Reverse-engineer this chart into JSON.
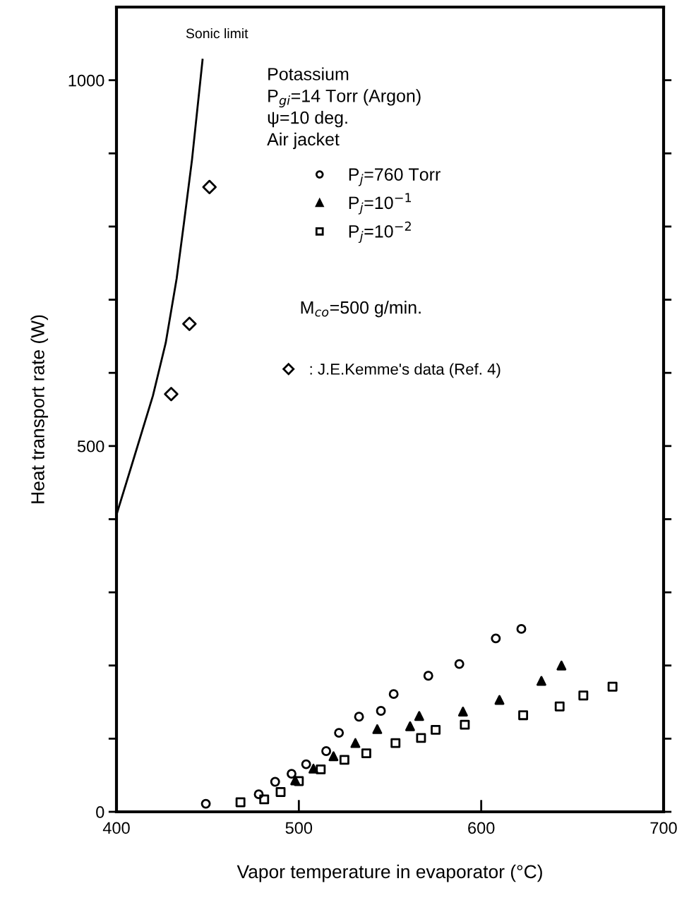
{
  "chart_data": {
    "type": "scatter",
    "xlabel": "Vapor temperature in evaporator (°C)",
    "ylabel": "Heat transport rate (W)",
    "xlim": [
      400,
      700
    ],
    "xticks": [
      400,
      500,
      600,
      700
    ],
    "ylim": [
      0,
      1100
    ],
    "yticks": [
      0,
      {
        "value": 100,
        "label": null
      },
      {
        "value": 200,
        "label": null
      },
      {
        "value": 300,
        "label": null
      },
      {
        "value": 400,
        "label": null
      },
      500,
      {
        "value": 600,
        "label": null
      },
      {
        "value": 700,
        "label": null
      },
      {
        "value": 800,
        "label": null
      },
      {
        "value": 900,
        "label": null
      },
      1000
    ],
    "grid": false,
    "legend": "top right",
    "annotations": [
      "Potassium",
      "P$_{gi}$=14 Torr (Argon)",
      "ψ=10 deg.",
      "Air jacket",
      "M$_{co}$=500 g/min.",
      {
        "text": "Sonic limit",
        "x": 447,
        "y": 1028
      }
    ],
    "series": [
      {
        "name": "P$_{j}$=760 Torr",
        "color": "#000000",
        "marker": "circle",
        "x": [
          449,
          478,
          487,
          496,
          504,
          515,
          522,
          533,
          545,
          552,
          571,
          588,
          608,
          622
        ],
        "values": [
          11,
          24,
          41,
          52,
          65,
          83,
          108,
          130,
          138,
          161,
          186,
          202,
          237,
          250
        ]
      },
      {
        "name": "P$_{j}$=10$^{−1}$",
        "color": "#000000",
        "marker": "triangle",
        "x": [
          498,
          508,
          519,
          531,
          543,
          561,
          566,
          590,
          610,
          633,
          644
        ],
        "values": [
          43,
          59,
          76,
          94,
          113,
          117,
          131,
          137,
          153,
          179,
          200
        ]
      },
      {
        "name": "P$_{j}$=10$^{−2}$",
        "color": "#000000",
        "marker": "square",
        "x": [
          468,
          481,
          490,
          500,
          512,
          525,
          537,
          553,
          567,
          575,
          591,
          623,
          643,
          656,
          672
        ],
        "values": [
          13,
          17,
          27,
          42,
          58,
          71,
          80,
          94,
          101,
          112,
          119,
          132,
          144,
          159,
          171
        ]
      },
      {
        "name": ": J.E.Kemme's data (Ref. 4)",
        "color": "#000000",
        "marker": "diamond",
        "x": [
          430,
          440,
          451
        ],
        "values": [
          571,
          667,
          854
        ]
      },
      {
        "type": "line",
        "color": "#000000",
        "marker": "none",
        "line_style": "solid",
        "x": [
          400,
          408.5,
          420,
          427,
          433,
          437,
          441.4,
          447.2
        ],
        "values": [
          406,
          475,
          569,
          641,
          729,
          805,
          891,
          1028
        ]
      }
    ]
  }
}
